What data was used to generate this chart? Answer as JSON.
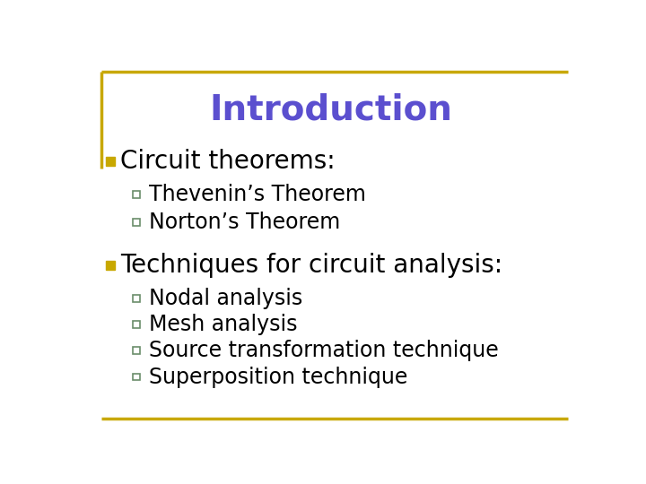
{
  "title": "Introduction",
  "title_color": "#5B4FCF",
  "title_fontsize": 28,
  "background_color": "#FFFFFF",
  "border_color": "#C8A800",
  "bullet_color": "#C8A800",
  "sub_bullet_edge_color": "#6B8E6B",
  "text_color": "#000000",
  "bullet1_text": "Circuit theorems:",
  "bullet1_fontsize": 20,
  "sub_bullets1": [
    "Thevenin’s Theorem",
    "Norton’s Theorem"
  ],
  "bullet2_text": "Techniques for circuit analysis:",
  "bullet2_fontsize": 20,
  "sub_bullets2": [
    "Nodal analysis",
    "Mesh analysis",
    "Source transformation technique",
    "Superposition technique"
  ],
  "sub_bullet_fontsize": 17
}
